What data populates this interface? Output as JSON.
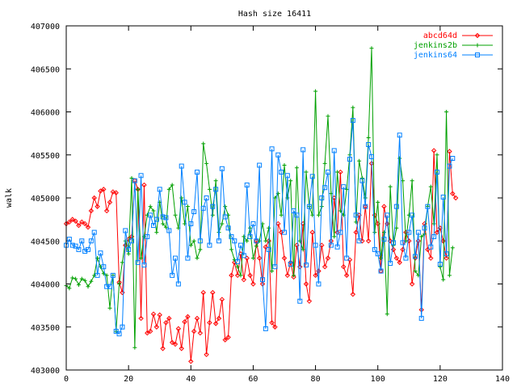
{
  "chart_data": {
    "type": "line",
    "title": "Hash size 16411",
    "xlabel": "",
    "ylabel": "walk",
    "xlim": [
      0,
      140
    ],
    "ylim": [
      403000,
      407000
    ],
    "xticks": [
      0,
      20,
      40,
      60,
      80,
      100,
      120,
      140
    ],
    "yticks": [
      403000,
      403500,
      404000,
      404500,
      405000,
      405500,
      406000,
      406500,
      407000
    ],
    "grid": false,
    "legend_position": "top-right",
    "series": [
      {
        "name": "abcd64d",
        "color": "#ff0000",
        "marker": "diamond",
        "values": [
          404700,
          404720,
          404750,
          404730,
          404680,
          404720,
          404700,
          404660,
          404850,
          405000,
          404900,
          405080,
          405100,
          404850,
          404950,
          405070,
          405060,
          404020,
          403900,
          404450,
          404520,
          404550,
          405200,
          405100,
          403600,
          405150,
          403430,
          403450,
          403650,
          403500,
          403640,
          403250,
          403550,
          403600,
          403320,
          403300,
          403480,
          403250,
          403560,
          403620,
          403100,
          403450,
          403600,
          403430,
          403900,
          403180,
          403550,
          403900,
          403540,
          403600,
          403820,
          403350,
          403380,
          404100,
          404250,
          404100,
          404350,
          404050,
          404300,
          404100,
          404000,
          404500,
          404300,
          404000,
          404430,
          404500,
          403550,
          403500,
          404700,
          404600,
          404300,
          404100,
          404250,
          404080,
          404450,
          404200,
          404700,
          404000,
          403800,
          404600,
          404100,
          404150,
          404450,
          404200,
          404300,
          404500,
          405000,
          404600,
          405300,
          404200,
          404100,
          404280,
          403880,
          404600,
          404800,
          404500,
          404900,
          404500,
          405400,
          404800,
          404700,
          404150,
          404900,
          404700,
          404500,
          404400,
          404300,
          404250,
          404400,
          404600,
          404500,
          404000,
          404300,
          404500,
          403700,
          404700,
          404400,
          404300,
          405550,
          404600,
          404650,
          404500,
          404300,
          405540,
          405050,
          405000
        ]
      },
      {
        "name": "jenkins2b",
        "color": "#00a000",
        "marker": "plus",
        "values": [
          403980,
          403950,
          404070,
          404060,
          403990,
          404060,
          404040,
          403970,
          404030,
          404100,
          404300,
          404200,
          404120,
          404100,
          403720,
          404100,
          403450,
          404000,
          404250,
          404500,
          404350,
          405230,
          403260,
          405100,
          404300,
          404550,
          404800,
          404900,
          404850,
          404600,
          404950,
          404700,
          404660,
          405100,
          405150,
          404800,
          404650,
          405000,
          404700,
          404900,
          404450,
          404500,
          404300,
          404400,
          405630,
          405400,
          405100,
          404800,
          405200,
          404600,
          404700,
          404900,
          404800,
          404400,
          404280,
          404200,
          404100,
          404550,
          404500,
          404650,
          404300,
          404440,
          404500,
          404700,
          404500,
          404650,
          404150,
          405000,
          405050,
          404800,
          405380,
          405000,
          405200,
          404100,
          405350,
          404500,
          404400,
          405300,
          404900,
          404800,
          406240,
          404800,
          404900,
          405400,
          405950,
          405050,
          404550,
          405300,
          404850,
          404800,
          405100,
          405500,
          406050,
          404720,
          405430,
          405230,
          405000,
          405700,
          406740,
          404600,
          404950,
          404300,
          404600,
          403650,
          405130,
          404450,
          404650,
          405460,
          405200,
          404500,
          404800,
          405200,
          404150,
          404100,
          404550,
          404580,
          404900,
          405130,
          404700,
          405500,
          404200,
          404050,
          406000,
          404100,
          404420
        ]
      },
      {
        "name": "jenkins64",
        "color": "#0080ff",
        "marker": "square",
        "values": [
          404450,
          404520,
          404450,
          404440,
          404400,
          404500,
          404380,
          404400,
          404500,
          404600,
          404100,
          404360,
          404200,
          403970,
          403970,
          404100,
          403450,
          403420,
          403500,
          404620,
          404400,
          404500,
          405200,
          404250,
          405260,
          404220,
          404550,
          404800,
          404680,
          404750,
          405100,
          404780,
          404770,
          404620,
          404100,
          404300,
          404000,
          405370,
          404950,
          404300,
          404700,
          404840,
          405300,
          404500,
          404880,
          405000,
          404450,
          404900,
          405100,
          404500,
          405340,
          404780,
          404650,
          404550,
          404500,
          404260,
          404450,
          404330,
          405150,
          404550,
          404700,
          404500,
          405380,
          404050,
          403480,
          404400,
          405570,
          404200,
          405500,
          405300,
          404600,
          405260,
          404230,
          404850,
          404800,
          403800,
          405560,
          404220,
          404900,
          405250,
          404450,
          404000,
          405000,
          405120,
          405300,
          404450,
          405550,
          404430,
          404600,
          405130,
          404300,
          405450,
          405900,
          404800,
          404500,
          405200,
          404900,
          405620,
          405480,
          404400,
          404350,
          404150,
          404520,
          404800,
          404240,
          404480,
          404900,
          405730,
          404480,
          404300,
          404600,
          404800,
          404320,
          404600,
          403600,
          404650,
          404900,
          404430,
          404550,
          405300,
          404230,
          405010,
          404350,
          405370,
          405460
        ]
      }
    ]
  }
}
